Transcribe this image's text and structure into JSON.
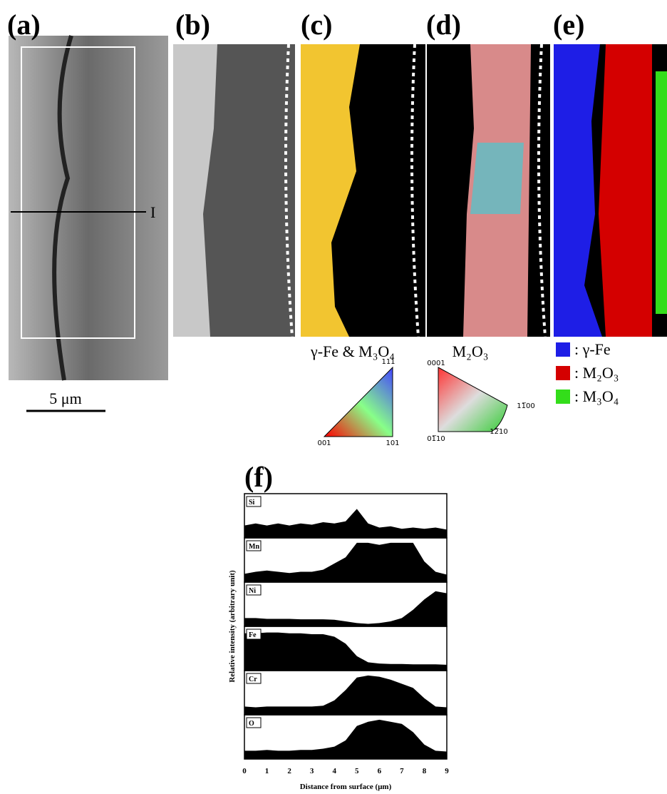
{
  "figure": {
    "panels": [
      "(a)",
      "(b)",
      "(c)",
      "(d)",
      "(e)"
    ],
    "line_marker": "I",
    "scale_bar": "5 μm",
    "ipf_fcc": {
      "title": "γ-Fe & M₃O₄",
      "corners": [
        "111",
        "001",
        "101"
      ]
    },
    "ipf_hex": {
      "title": "M₂O₃",
      "corners": [
        "0001",
        "11̅00",
        "01̅10",
        "12̅10"
      ]
    },
    "phase_legend": [
      {
        "label": ": γ-Fe",
        "color": "#1e1ee6"
      },
      {
        "label": ": M₂O₃",
        "color": "#d40000"
      },
      {
        "label": ": M₃O₄",
        "color": "#33dd1a"
      }
    ]
  },
  "chart_data": {
    "type": "area",
    "title": "(f)",
    "x_label": "Distance from surface (μm)",
    "y_label": "Relative intensity (arbitrary unit)",
    "x": [
      0,
      0.5,
      1,
      1.5,
      2,
      2.5,
      3,
      3.5,
      4,
      4.5,
      5,
      5.5,
      6,
      6.5,
      7,
      7.5,
      8,
      8.5,
      9
    ],
    "xlim": [
      0,
      9
    ],
    "xticks": [
      0,
      1,
      2,
      3,
      4,
      5,
      6,
      7,
      8,
      9
    ],
    "ylim": [
      0,
      1
    ],
    "series": [
      {
        "name": "Si",
        "color": "#000000",
        "values": [
          0.3,
          0.35,
          0.3,
          0.35,
          0.3,
          0.35,
          0.32,
          0.38,
          0.35,
          0.4,
          0.7,
          0.35,
          0.25,
          0.28,
          0.22,
          0.25,
          0.22,
          0.25,
          0.2
        ]
      },
      {
        "name": "Mn",
        "color": "#000000",
        "values": [
          0.2,
          0.25,
          0.28,
          0.25,
          0.22,
          0.25,
          0.25,
          0.3,
          0.45,
          0.6,
          0.95,
          0.95,
          0.9,
          0.95,
          0.95,
          0.95,
          0.5,
          0.25,
          0.18
        ]
      },
      {
        "name": "Ni",
        "color": "#000000",
        "values": [
          0.2,
          0.2,
          0.18,
          0.18,
          0.18,
          0.17,
          0.17,
          0.17,
          0.16,
          0.12,
          0.08,
          0.06,
          0.08,
          0.12,
          0.2,
          0.4,
          0.65,
          0.85,
          0.8
        ]
      },
      {
        "name": "Fe",
        "color": "#000000",
        "values": [
          0.9,
          0.9,
          0.92,
          0.92,
          0.9,
          0.9,
          0.88,
          0.88,
          0.82,
          0.65,
          0.35,
          0.2,
          0.17,
          0.16,
          0.16,
          0.15,
          0.15,
          0.15,
          0.14
        ]
      },
      {
        "name": "Cr",
        "color": "#000000",
        "values": [
          0.2,
          0.18,
          0.2,
          0.2,
          0.2,
          0.2,
          0.2,
          0.22,
          0.35,
          0.6,
          0.9,
          0.95,
          0.92,
          0.85,
          0.75,
          0.65,
          0.4,
          0.2,
          0.18
        ]
      },
      {
        "name": "O",
        "color": "#000000",
        "values": [
          0.2,
          0.2,
          0.22,
          0.2,
          0.2,
          0.22,
          0.22,
          0.25,
          0.3,
          0.45,
          0.8,
          0.9,
          0.95,
          0.9,
          0.85,
          0.65,
          0.35,
          0.2,
          0.18
        ]
      }
    ]
  }
}
